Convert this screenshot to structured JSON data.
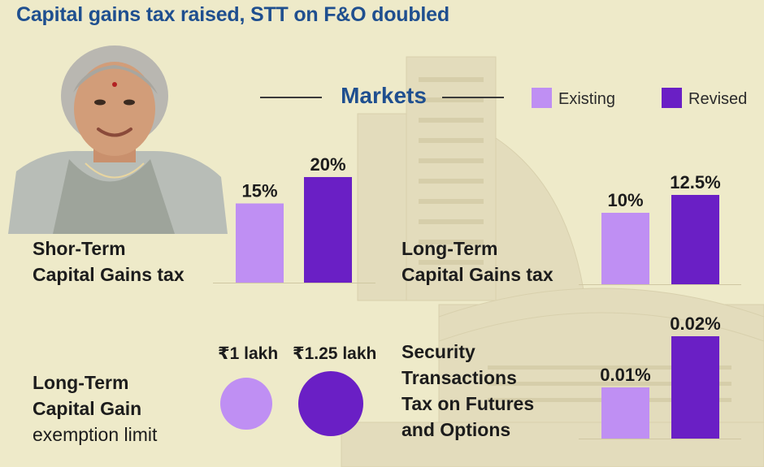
{
  "headline": "Capital gains tax raised, STT on F&O doubled",
  "section_title": "Markets",
  "colors": {
    "existing": "#bf8ff3",
    "revised": "#6a1fc5",
    "heading": "#1f4f8f",
    "background": "#eeeac9"
  },
  "legend": [
    {
      "name": "Existing",
      "color": "#bf8ff3"
    },
    {
      "name": "Revised",
      "color": "#6a1fc5"
    }
  ],
  "chart_data": [
    {
      "type": "bar",
      "title": "Shor-Term Capital Gains tax",
      "title_lines": [
        "Shor-Term",
        "Capital Gains tax"
      ],
      "categories": [
        "Existing",
        "Revised"
      ],
      "values": [
        15,
        20
      ],
      "value_labels": [
        "15%",
        "20%"
      ],
      "unit": "%",
      "legend": "top-right",
      "grid": false
    },
    {
      "type": "bar",
      "title": "Long-Term Capital Gains tax",
      "title_lines": [
        "Long-Term",
        "Capital Gains tax"
      ],
      "categories": [
        "Existing",
        "Revised"
      ],
      "values": [
        10,
        12.5
      ],
      "value_labels": [
        "10%",
        "12.5%"
      ],
      "unit": "%",
      "legend": "top-right",
      "grid": false
    },
    {
      "type": "bubble",
      "title": "Long-Term Capital Gain exemption limit",
      "title_lines": [
        "Long-Term",
        "Capital Gain",
        "exemption limit"
      ],
      "categories": [
        "Existing",
        "Revised"
      ],
      "values": [
        1,
        1.25
      ],
      "value_labels": [
        "₹1 lakh",
        "₹1.25 lakh"
      ],
      "unit": "lakh"
    },
    {
      "type": "bar",
      "title": "Security Transactions Tax on Futures and Options",
      "title_lines": [
        "Security",
        "Transactions",
        "Tax on Futures",
        "and Options"
      ],
      "categories": [
        "Existing",
        "Revised"
      ],
      "values": [
        0.01,
        0.02
      ],
      "value_labels": [
        "0.01%",
        "0.02%"
      ],
      "unit": "%",
      "legend": "top-right",
      "grid": false
    }
  ]
}
